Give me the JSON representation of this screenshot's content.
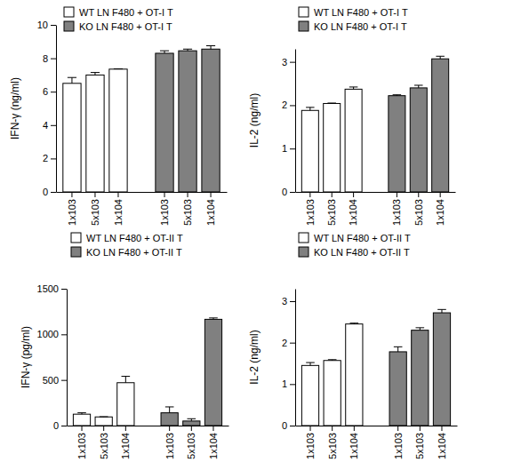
{
  "chart_data": [
    {
      "type": "bar",
      "y_label": "IFN-γ (ng/ml)",
      "legend": "top-left",
      "categories": [
        "1x103",
        "5x103",
        "1x104"
      ],
      "ylim": [
        0,
        10
      ],
      "yticks": [
        0,
        2,
        4,
        6,
        8,
        10
      ],
      "series": [
        {
          "name": "WT LN F480 + OT-I T",
          "color": "#ffffff",
          "values": [
            6.5,
            7.0,
            7.35
          ],
          "errors": [
            0.35,
            0.15,
            0.02
          ]
        },
        {
          "name": "KO LN F480 + OT-I T",
          "color": "#808080",
          "values": [
            8.3,
            8.45,
            8.55
          ],
          "errors": [
            0.15,
            0.1,
            0.2
          ]
        }
      ]
    },
    {
      "type": "bar",
      "y_label": "IL-2 (ng/ml)",
      "legend": "top-left",
      "categories": [
        "1x103",
        "5x103",
        "1x104"
      ],
      "ylim": [
        0,
        3.3
      ],
      "yticks": [
        0,
        1,
        2,
        3
      ],
      "series": [
        {
          "name": "WT LN F480 + OT-I T",
          "color": "#ffffff",
          "values": [
            1.88,
            2.04,
            2.37
          ],
          "errors": [
            0.07,
            0.01,
            0.05
          ]
        },
        {
          "name": "KO LN F480 + OT-I T",
          "color": "#808080",
          "values": [
            2.22,
            2.4,
            3.07
          ],
          "errors": [
            0.02,
            0.06,
            0.06
          ]
        }
      ]
    },
    {
      "type": "bar",
      "y_label": "IFN-γ (pg/ml)",
      "legend": "top-left",
      "categories": [
        "1x103",
        "5x103",
        "1x104"
      ],
      "ylim": [
        0,
        1500
      ],
      "yticks": [
        0,
        500,
        1000,
        1500
      ],
      "series": [
        {
          "name": "WT LN F480 + OT-II T",
          "color": "#ffffff",
          "values": [
            125,
            95,
            470
          ],
          "errors": [
            15,
            2,
            70
          ]
        },
        {
          "name": "KO LN F480 + OT-II T",
          "color": "#808080",
          "values": [
            140,
            50,
            1165
          ],
          "errors": [
            65,
            25,
            15
          ]
        }
      ]
    },
    {
      "type": "bar",
      "y_label": "IL-2 (ng/ml)",
      "legend": "top-left",
      "categories": [
        "1x103",
        "5x103",
        "1x104"
      ],
      "ylim": [
        0,
        3.3
      ],
      "yticks": [
        0,
        1,
        2,
        3
      ],
      "series": [
        {
          "name": "WT LN F480 + OT-II T",
          "color": "#ffffff",
          "values": [
            1.45,
            1.57,
            2.45
          ],
          "errors": [
            0.07,
            0.02,
            0.02
          ]
        },
        {
          "name": "KO LN F480 + OT-II T",
          "color": "#808080",
          "values": [
            1.78,
            2.3,
            2.72
          ],
          "errors": [
            0.12,
            0.06,
            0.08
          ]
        }
      ]
    }
  ]
}
